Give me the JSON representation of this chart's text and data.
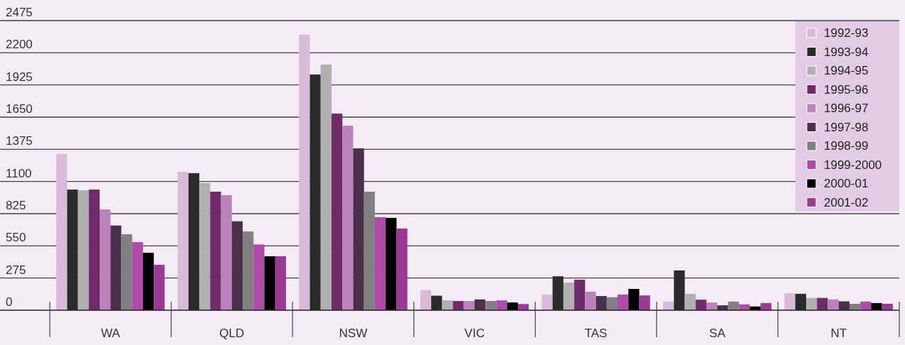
{
  "chart_data": {
    "type": "bar",
    "categories": [
      "WA",
      "QLD",
      "NSW",
      "VIC",
      "TAS",
      "SA",
      "NT"
    ],
    "series": [
      {
        "name": "1992-93",
        "color": "#d8bbd9",
        "values": [
          1335,
          1183,
          2354,
          171,
          134,
          74,
          145
        ]
      },
      {
        "name": "1993-94",
        "color": "#2b2b2b",
        "values": [
          1031,
          1171,
          2014,
          124,
          290,
          340,
          140
        ]
      },
      {
        "name": "1994-95",
        "color": "#b0b0b0",
        "values": [
          1025,
          1086,
          2099,
          84,
          237,
          140,
          105
        ]
      },
      {
        "name": "1995-96",
        "color": "#6f2a6a",
        "values": [
          1031,
          1013,
          1680,
          79,
          261,
          90,
          105
        ]
      },
      {
        "name": "1996-97",
        "color": "#bb82bb",
        "values": [
          861,
          983,
          1577,
          79,
          158,
          66,
          92
        ]
      },
      {
        "name": "1997-98",
        "color": "#4a304a",
        "values": [
          724,
          760,
          1383,
          92,
          121,
          42,
          76
        ]
      },
      {
        "name": "1998-99",
        "color": "#808080",
        "values": [
          649,
          673,
          1013,
          79,
          111,
          74,
          55
        ]
      },
      {
        "name": "1999-2000",
        "color": "#b04aa8",
        "values": [
          582,
          562,
          795,
          84,
          134,
          50,
          74
        ]
      },
      {
        "name": "2000-01",
        "color": "#000000",
        "values": [
          491,
          461,
          789,
          66,
          182,
          32,
          61
        ]
      },
      {
        "name": "2001-02",
        "color": "#9a3a94",
        "values": [
          388,
          461,
          698,
          53,
          126,
          61,
          55
        ]
      }
    ],
    "ylim": [
      0,
      2475
    ],
    "yticks": [
      0,
      275,
      550,
      825,
      1100,
      1375,
      1650,
      1925,
      2200,
      2475
    ],
    "grid": "y",
    "legend": "top right"
  }
}
